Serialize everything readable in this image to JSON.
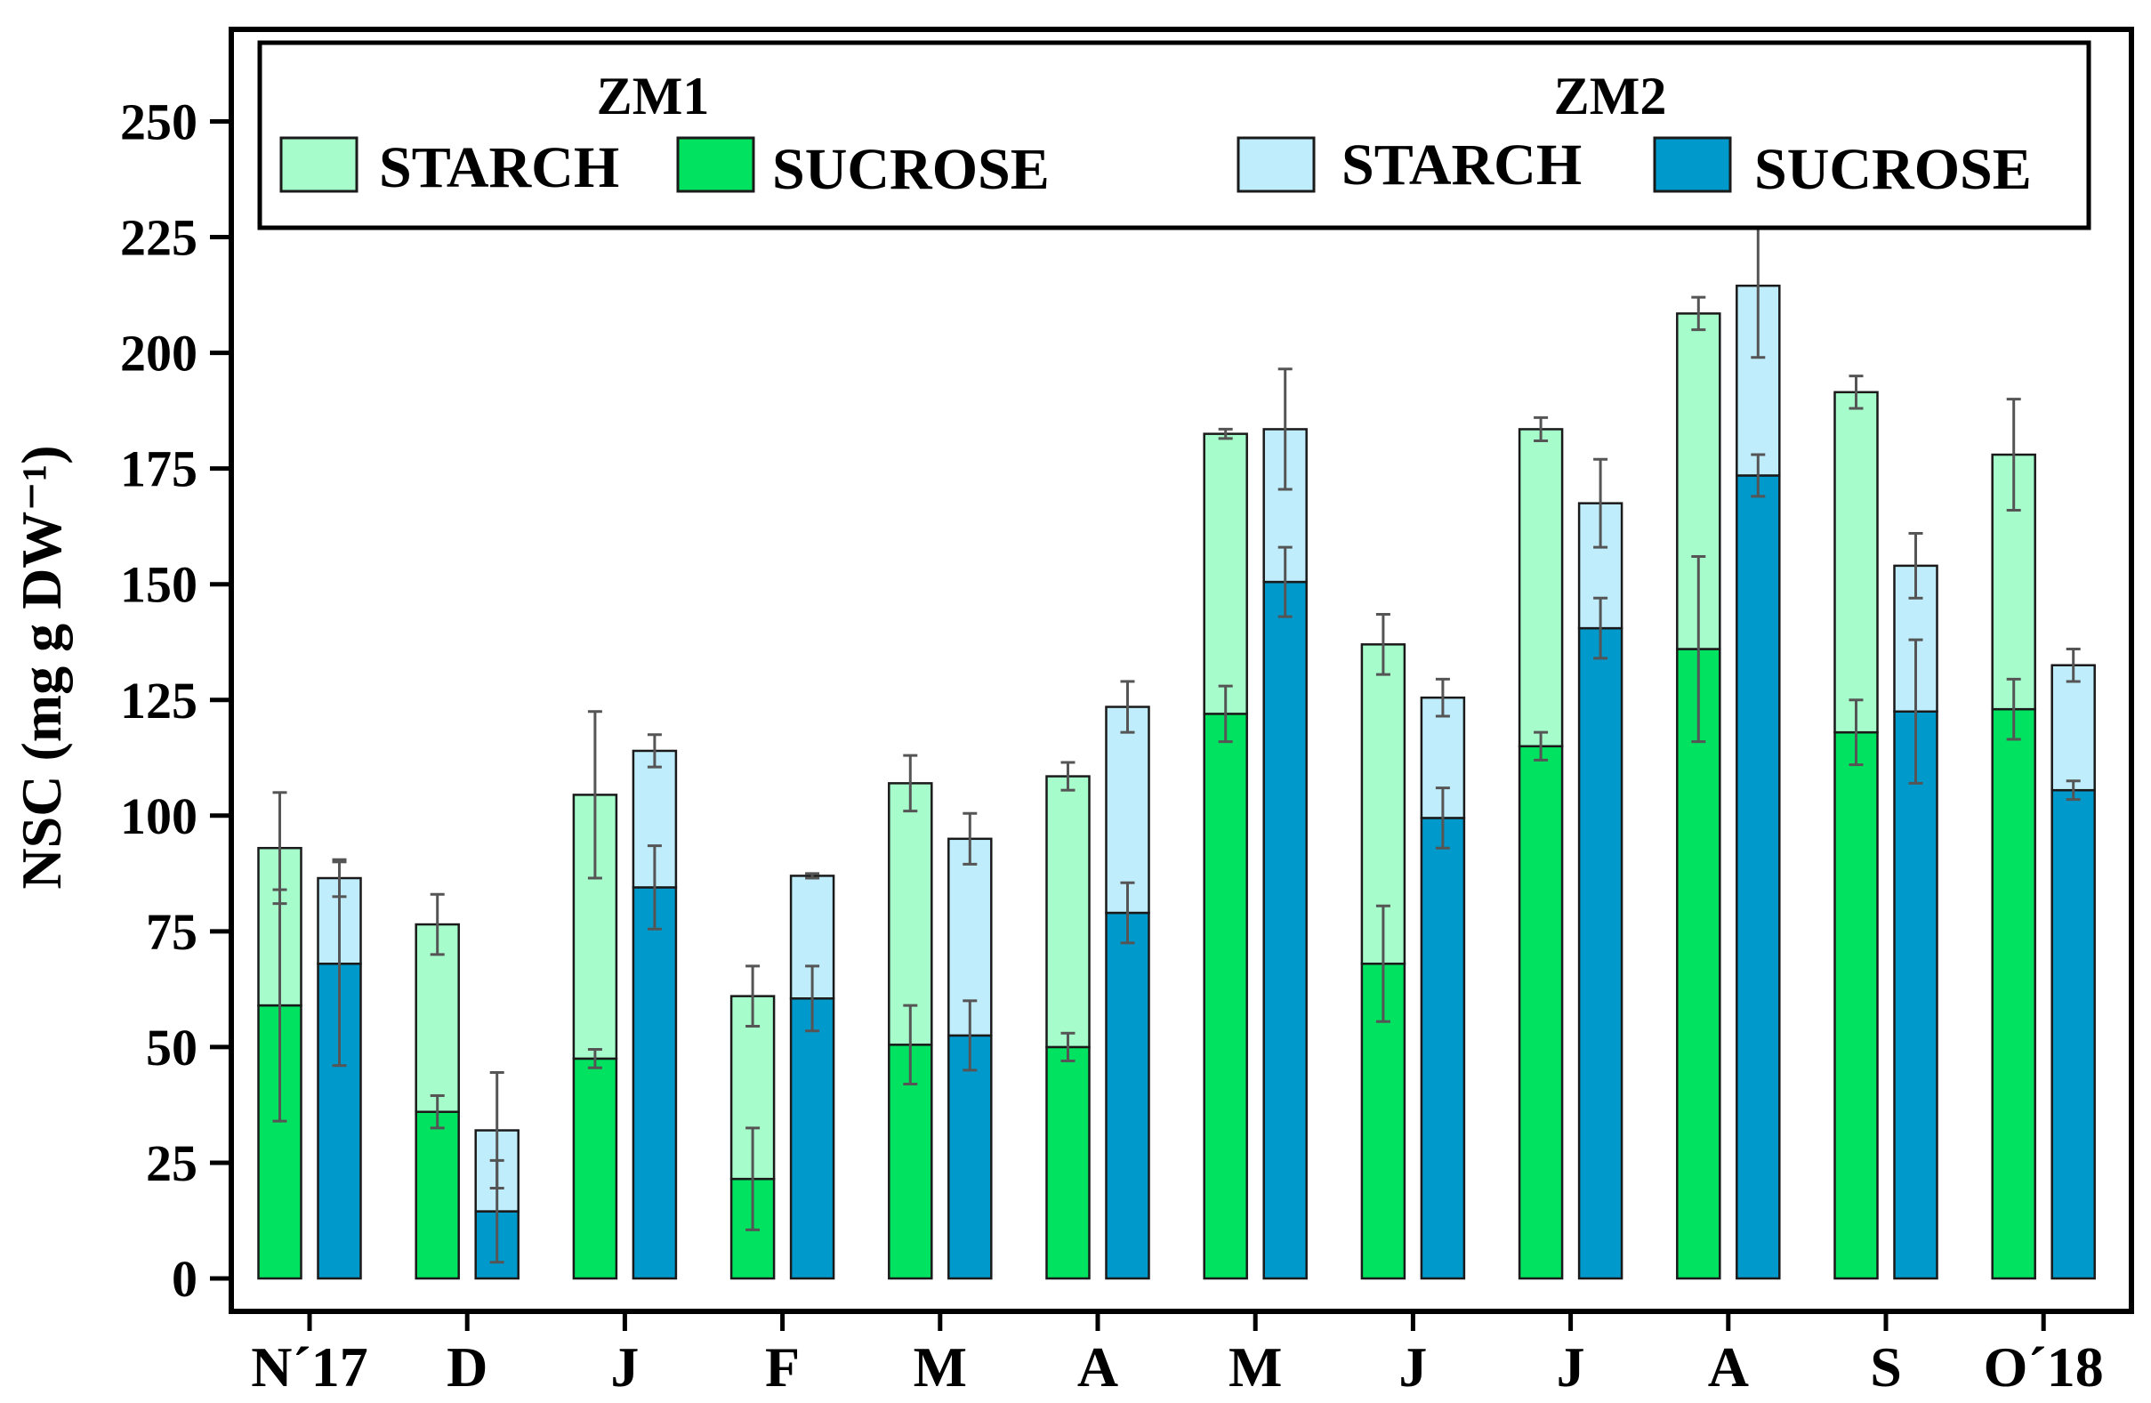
{
  "chart_data": {
    "type": "bar",
    "subtype": "stacked-grouped-with-error-bars",
    "title": "",
    "xlabel": "",
    "ylabel": "NSC (mg g DW⁻¹)",
    "ylim": [
      0,
      265
    ],
    "yticks": [
      0,
      25,
      50,
      75,
      100,
      125,
      150,
      175,
      200,
      225,
      250
    ],
    "grid": false,
    "legend_position": "top",
    "categories": [
      "N´17",
      "D",
      "J",
      "F",
      "M",
      "A",
      "M",
      "J",
      "J",
      "A",
      "S",
      "O´18"
    ],
    "groups": [
      {
        "name": "ZM1",
        "series": [
          {
            "name": "SUCROSE",
            "color": "#00e260",
            "values": [
              59,
              36,
              47.5,
              21.5,
              50.5,
              50,
              122,
              68,
              115,
              136,
              118,
              123
            ],
            "errors": [
              25,
              3.5,
              2,
              11,
              8.5,
              3,
              6,
              12.5,
              3,
              20,
              7,
              6.5
            ]
          },
          {
            "name": "STARCH",
            "color": "#a6fdcb",
            "values": [
              34,
              40.5,
              57,
              39.5,
              56.5,
              58.5,
              60.5,
              69,
              68.5,
              72.5,
              73.5,
              55
            ],
            "errors": [
              12,
              6.5,
              18,
              6.5,
              6,
              3,
              1,
              6.5,
              2.5,
              3.5,
              3.5,
              12
            ]
          }
        ]
      },
      {
        "name": "ZM2",
        "series": [
          {
            "name": "SUCROSE",
            "color": "#0099cc",
            "values": [
              68,
              14.5,
              84.5,
              60.5,
              52.5,
              79,
              150.5,
              99.5,
              140.5,
              173.5,
              122.5,
              105.5
            ],
            "errors": [
              22,
              11,
              9,
              7,
              7.5,
              6.5,
              7.5,
              6.5,
              6.5,
              4.5,
              15.5,
              2
            ]
          },
          {
            "name": "STARCH",
            "color": "#bfedfc",
            "values": [
              18.5,
              17.5,
              29.5,
              26.5,
              42.5,
              44.5,
              33,
              26,
              27,
              41,
              31.5,
              27
            ],
            "errors": [
              4,
              12.5,
              3.5,
              0.5,
              5.5,
              5.5,
              13,
              4,
              9.5,
              15.5,
              7,
              3.5
            ]
          }
        ]
      }
    ]
  },
  "legend": {
    "groups": [
      {
        "title": "ZM1",
        "items": [
          {
            "label": "STARCH",
            "color": "#a6fdcb"
          },
          {
            "label": "SUCROSE",
            "color": "#00e260"
          }
        ]
      },
      {
        "title": "ZM2",
        "items": [
          {
            "label": "STARCH",
            "color": "#bfedfc"
          },
          {
            "label": "SUCROSE",
            "color": "#0099cc"
          }
        ]
      }
    ]
  },
  "colors": {
    "axis": "#000000",
    "bar_stroke": "#1a1a1a",
    "error_bar": "#555555"
  }
}
